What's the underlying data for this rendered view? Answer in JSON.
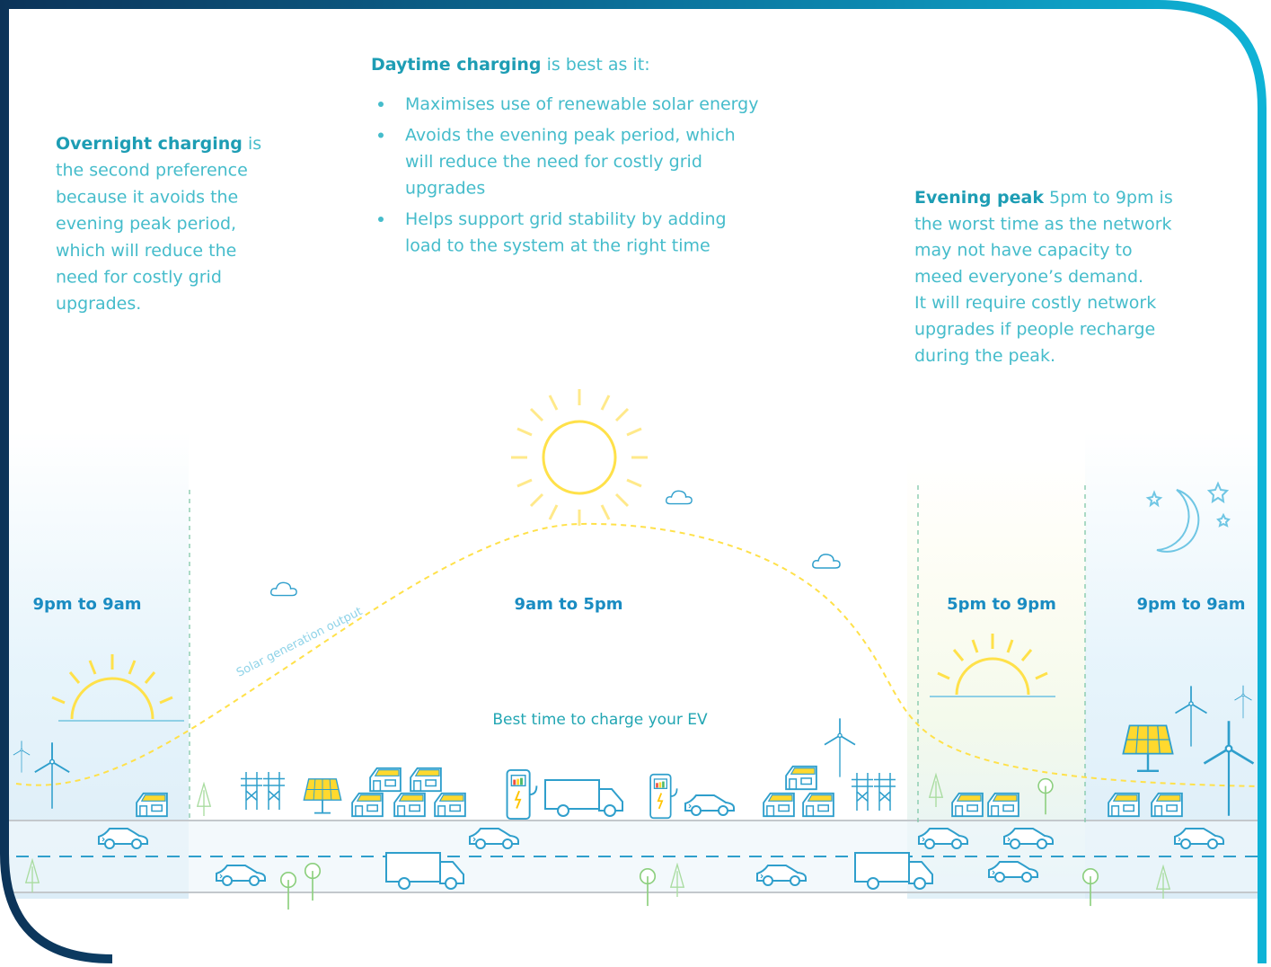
{
  "overnight": {
    "heading": "Overnight charging",
    "lead": "is",
    "lines": [
      "the second preference",
      "because it avoids the",
      "evening peak period,",
      "which will reduce the",
      "need for costly grid",
      "upgrades."
    ]
  },
  "daytime": {
    "heading": "Daytime charging",
    "lead": "is best as it:",
    "bullets": [
      [
        "Maximises use of renewable solar energy"
      ],
      [
        "Avoids the evening peak period, which",
        "will reduce the need for costly grid",
        "upgrades"
      ],
      [
        "Helps support grid stability by adding",
        "load to the system at the right time"
      ]
    ]
  },
  "evening": {
    "heading": "Evening peak",
    "lead": "5pm to 9pm is",
    "lines": [
      "the worst time as the network",
      "may not have capacity to",
      "meed everyone’s demand.",
      "It will require costly network",
      "upgrades if people recharge",
      "during the peak."
    ]
  },
  "periods": [
    "9pm to 9am",
    "9am to 5pm",
    "5pm to 9pm",
    "9pm to 9am"
  ],
  "curve_label": "Solar generation output",
  "best_time": "Best time to charge your EV"
}
